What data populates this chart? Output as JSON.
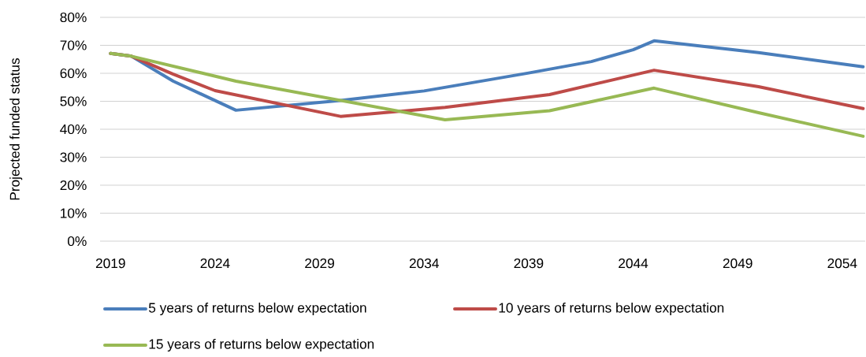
{
  "chart_data": {
    "type": "line",
    "ylabel": "Projected funded status",
    "xlim": [
      2018.5,
      2055.1
    ],
    "xticks": [
      2019,
      2024,
      2029,
      2034,
      2039,
      2044,
      2049,
      2054
    ],
    "ylim": [
      0,
      80
    ],
    "yticks": [
      {
        "value": 0,
        "label": "0%"
      },
      {
        "value": 10,
        "label": "10%"
      },
      {
        "value": 20,
        "label": "20%"
      },
      {
        "value": 30,
        "label": "30%"
      },
      {
        "value": 40,
        "label": "40%"
      },
      {
        "value": 50,
        "label": "50%"
      },
      {
        "value": 60,
        "label": "60%"
      },
      {
        "value": 70,
        "label": "70%"
      },
      {
        "value": 80,
        "label": "80%"
      }
    ],
    "grid": "y",
    "legend": "bottom",
    "marker": "none",
    "line_style": "solid",
    "series": [
      {
        "name": "5 years of returns below expectation",
        "color": "#4a7ebb",
        "x": [
          2019,
          2020,
          2022,
          2025,
          2030,
          2034,
          2039,
          2042,
          2044,
          2045,
          2050,
          2055
        ],
        "values": [
          67.1,
          66.1,
          57.2,
          46.8,
          50.3,
          53.7,
          60.1,
          64.2,
          68.4,
          71.6,
          67.4,
          62.3
        ]
      },
      {
        "name": "10 years of returns below expectation",
        "color": "#be4b48",
        "x": [
          2019,
          2020,
          2022,
          2024,
          2030,
          2035,
          2040,
          2045,
          2050,
          2055
        ],
        "values": [
          67.1,
          66.1,
          59.7,
          53.8,
          44.6,
          47.8,
          52.4,
          61.1,
          55.2,
          47.4
        ]
      },
      {
        "name": "15 years of returns below expectation",
        "color": "#98b954",
        "x": [
          2019,
          2020,
          2025,
          2030,
          2035,
          2040,
          2045,
          2050,
          2055
        ],
        "values": [
          67.1,
          66.1,
          57.2,
          50.3,
          43.4,
          46.6,
          54.7,
          45.9,
          37.5
        ]
      }
    ]
  }
}
